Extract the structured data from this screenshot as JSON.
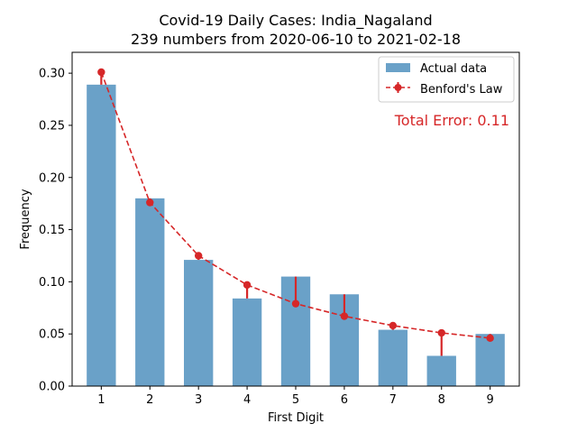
{
  "chart_data": {
    "type": "bar",
    "title": "Covid-19 Daily Cases: India_Nagaland",
    "subtitle": "239 numbers from 2020-06-10 to 2021-02-18",
    "xlabel": "First Digit",
    "ylabel": "Frequency",
    "categories": [
      "1",
      "2",
      "3",
      "4",
      "5",
      "6",
      "7",
      "8",
      "9"
    ],
    "series": [
      {
        "name": "Actual data",
        "type": "bar",
        "color": "#6aa1c8",
        "values": [
          0.289,
          0.18,
          0.121,
          0.084,
          0.105,
          0.088,
          0.054,
          0.029,
          0.05
        ]
      },
      {
        "name": "Benford's Law",
        "type": "line",
        "style": "dashed",
        "marker": "circle",
        "color": "#d62728",
        "values": [
          0.301,
          0.176,
          0.125,
          0.097,
          0.079,
          0.067,
          0.058,
          0.051,
          0.046
        ]
      }
    ],
    "annotation": {
      "text": "Total Error: 0.11",
      "color": "#d62728"
    },
    "ylim": [
      0,
      0.32
    ],
    "yticks": [
      "0.00",
      "0.05",
      "0.10",
      "0.15",
      "0.20",
      "0.25",
      "0.30"
    ],
    "legend_position": "top-right",
    "grid": false
  }
}
